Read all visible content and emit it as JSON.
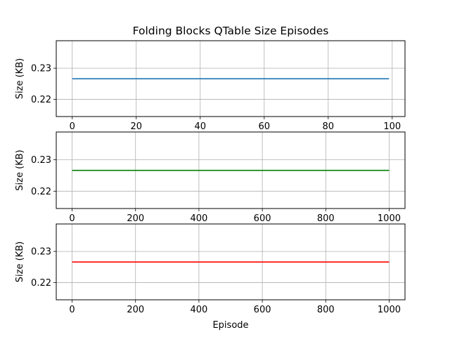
{
  "chart_data": {
    "title": "Folding Blocks QTable Size Episodes",
    "charts": [
      {
        "type": "line",
        "ylabel": "Size (KB)",
        "xlabel": "",
        "xlim": [
          -5,
          104
        ],
        "ylim": [
          0.2145,
          0.2388
        ],
        "xticks": [
          0,
          20,
          40,
          60,
          80,
          100
        ],
        "yticks": [
          0.22,
          0.23
        ],
        "grid": true,
        "series": [
          {
            "color": "#1f77b4",
            "x": [
              0,
              99
            ],
            "y": [
              0.2266,
              0.2266
            ]
          }
        ]
      },
      {
        "type": "line",
        "ylabel": "Size (KB)",
        "xlabel": "",
        "xlim": [
          -50,
          1050
        ],
        "ylim": [
          0.2145,
          0.2388
        ],
        "xticks": [
          0,
          200,
          400,
          600,
          800,
          1000
        ],
        "yticks": [
          0.22,
          0.23
        ],
        "grid": true,
        "series": [
          {
            "color": "#008000",
            "x": [
              0,
              1000
            ],
            "y": [
              0.2266,
              0.2266
            ]
          }
        ]
      },
      {
        "type": "line",
        "ylabel": "Size (KB)",
        "xlabel": "Episode",
        "xlim": [
          -50,
          1050
        ],
        "ylim": [
          0.2145,
          0.2388
        ],
        "xticks": [
          0,
          200,
          400,
          600,
          800,
          1000
        ],
        "yticks": [
          0.22,
          0.23
        ],
        "grid": true,
        "series": [
          {
            "color": "#ff0000",
            "x": [
              0,
              1000
            ],
            "y": [
              0.2266,
              0.2266
            ]
          }
        ]
      }
    ]
  }
}
